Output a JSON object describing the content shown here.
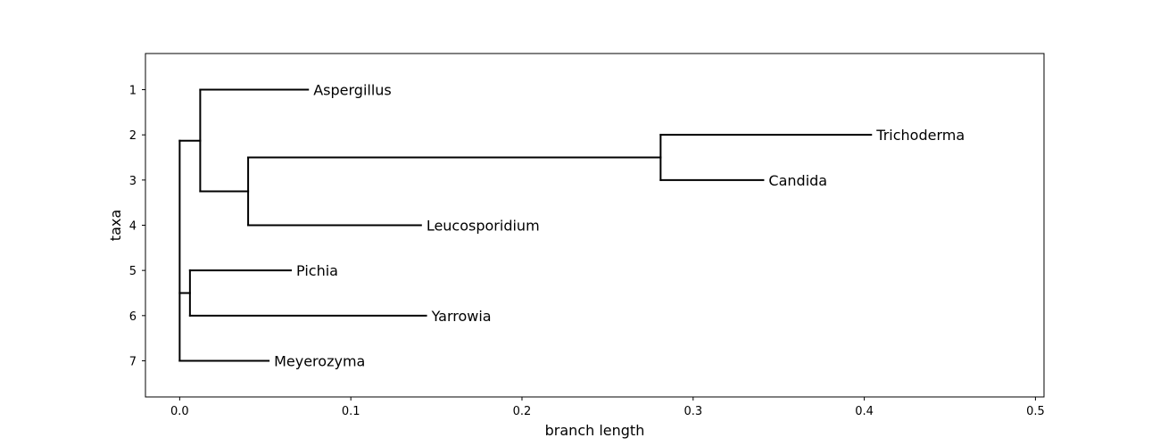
{
  "chart_data": {
    "type": "dendrogram",
    "title": "",
    "xlabel": "branch length",
    "ylabel": "taxa",
    "xlim": [
      -0.02,
      0.505
    ],
    "ylim": [
      7.8,
      0.2
    ],
    "xticks": [
      0.0,
      0.1,
      0.2,
      0.3,
      0.4,
      0.5
    ],
    "xtick_labels": [
      "0.0",
      "0.1",
      "0.2",
      "0.3",
      "0.4",
      "0.5"
    ],
    "yticks": [
      1,
      2,
      3,
      4,
      5,
      6,
      7
    ],
    "ytick_labels": [
      "1",
      "2",
      "3",
      "4",
      "5",
      "6",
      "7"
    ],
    "grid": false,
    "line_color": "#000000",
    "taxa": [
      {
        "name": "Aspergillus",
        "x": 0.075,
        "y": 1
      },
      {
        "name": "Trichoderma",
        "x": 0.404,
        "y": 2
      },
      {
        "name": "Candida",
        "x": 0.341,
        "y": 3
      },
      {
        "name": "Leucosporidium",
        "x": 0.141,
        "y": 4
      },
      {
        "name": "Pichia",
        "x": 0.065,
        "y": 5
      },
      {
        "name": "Yarrowia",
        "x": 0.144,
        "y": 6
      },
      {
        "name": "Meyerozyma",
        "x": 0.052,
        "y": 7
      }
    ],
    "segments": [
      {
        "x1": 0.0,
        "y1": 2.13,
        "x2": 0.0,
        "y2": 7
      },
      {
        "x1": 0.0,
        "y1": 2.13,
        "x2": 0.012,
        "y2": 2.13
      },
      {
        "x1": 0.0,
        "y1": 5.5,
        "x2": 0.006,
        "y2": 5.5
      },
      {
        "x1": 0.0,
        "y1": 7,
        "x2": 0.052,
        "y2": 7
      },
      {
        "x1": 0.012,
        "y1": 1,
        "x2": 0.012,
        "y2": 3.25
      },
      {
        "x1": 0.012,
        "y1": 1,
        "x2": 0.075,
        "y2": 1
      },
      {
        "x1": 0.012,
        "y1": 3.25,
        "x2": 0.04,
        "y2": 3.25
      },
      {
        "x1": 0.04,
        "y1": 2.5,
        "x2": 0.04,
        "y2": 4
      },
      {
        "x1": 0.04,
        "y1": 2.5,
        "x2": 0.281,
        "y2": 2.5
      },
      {
        "x1": 0.04,
        "y1": 4,
        "x2": 0.141,
        "y2": 4
      },
      {
        "x1": 0.281,
        "y1": 2,
        "x2": 0.281,
        "y2": 3
      },
      {
        "x1": 0.281,
        "y1": 2,
        "x2": 0.404,
        "y2": 2
      },
      {
        "x1": 0.281,
        "y1": 3,
        "x2": 0.341,
        "y2": 3
      },
      {
        "x1": 0.006,
        "y1": 5,
        "x2": 0.006,
        "y2": 6
      },
      {
        "x1": 0.006,
        "y1": 5,
        "x2": 0.065,
        "y2": 5
      },
      {
        "x1": 0.006,
        "y1": 6,
        "x2": 0.144,
        "y2": 6
      }
    ]
  }
}
